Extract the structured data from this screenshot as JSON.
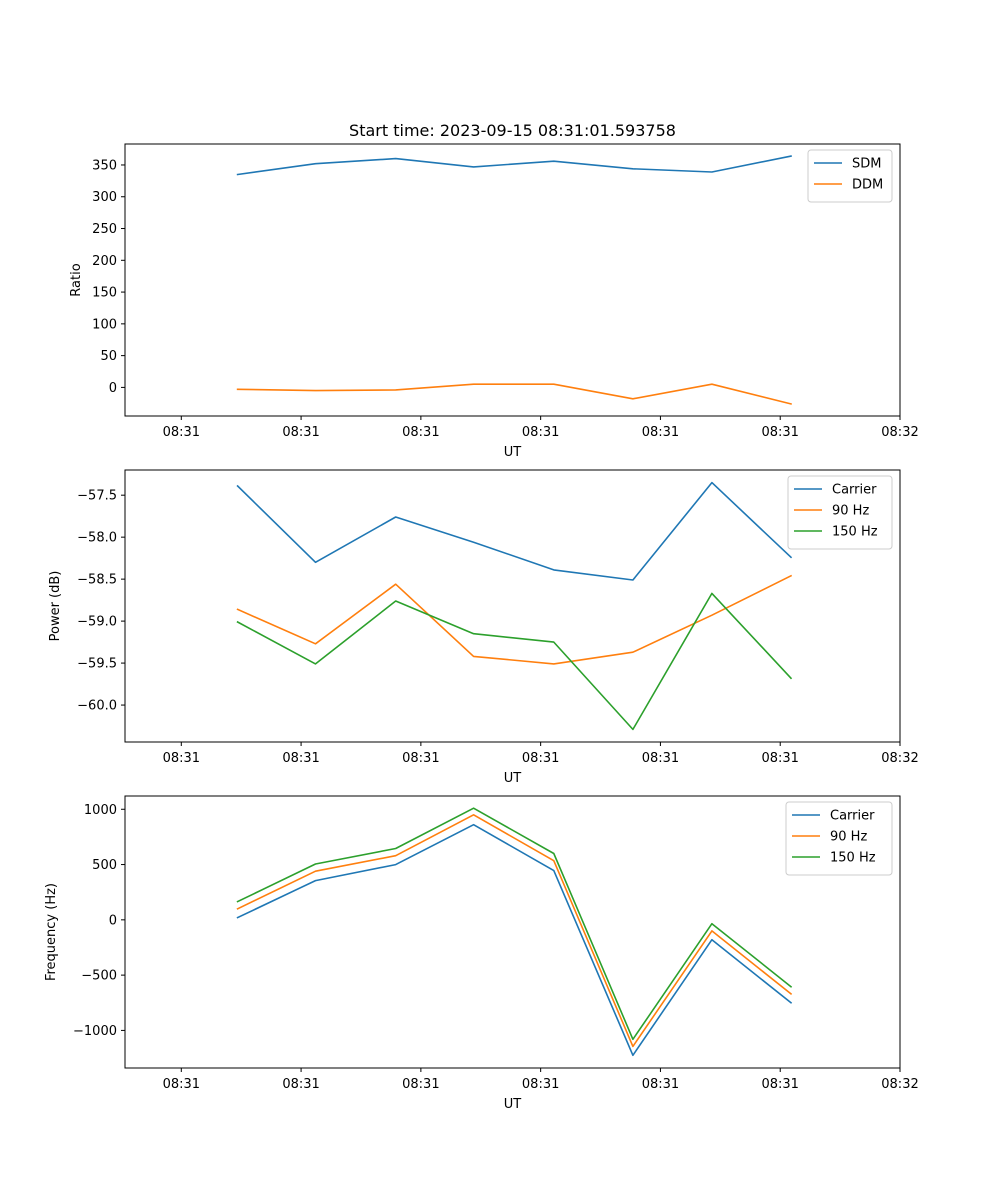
{
  "figure_title": "Start time: 2023-09-15 08:31:01.593758",
  "colors": {
    "blue": "#1f77b4",
    "orange": "#ff7f0e",
    "green": "#2ca02c"
  },
  "chart_data": [
    {
      "type": "line",
      "title": "Start time: 2023-09-15 08:31:01.593758",
      "xlabel": "UT",
      "ylabel": "Ratio",
      "x": [
        0.47,
        1.12,
        1.79,
        2.44,
        3.11,
        3.77,
        4.43,
        5.09
      ],
      "xlim": [
        -0.47,
        6.0
      ],
      "xticks": [
        0,
        1,
        2,
        3,
        4,
        5,
        6
      ],
      "xticklabels": [
        "08:31",
        "08:31",
        "08:31",
        "08:31",
        "08:31",
        "08:31",
        "08:32"
      ],
      "ylim": [
        -45,
        383
      ],
      "yticks": [
        0,
        50,
        100,
        150,
        200,
        250,
        300,
        350
      ],
      "yticklabels": [
        "0",
        "50",
        "100",
        "150",
        "200",
        "250",
        "300",
        "350"
      ],
      "legend_position": "top-right",
      "series": [
        {
          "name": "SDM",
          "color": "#1f77b4",
          "values": [
            335,
            352,
            360,
            347,
            356,
            344,
            339,
            364
          ]
        },
        {
          "name": "DDM",
          "color": "#ff7f0e",
          "values": [
            -3,
            -5,
            -4,
            5,
            5,
            -18,
            5,
            -26
          ]
        }
      ]
    },
    {
      "type": "line",
      "title": "",
      "xlabel": "UT",
      "ylabel": "Power (dB)",
      "x": [
        0.47,
        1.12,
        1.79,
        2.44,
        3.11,
        3.77,
        4.43,
        5.09
      ],
      "xlim": [
        -0.47,
        6.0
      ],
      "xticks": [
        0,
        1,
        2,
        3,
        4,
        5,
        6
      ],
      "xticklabels": [
        "08:31",
        "08:31",
        "08:31",
        "08:31",
        "08:31",
        "08:31",
        "08:32"
      ],
      "ylim": [
        -60.44,
        -57.2
      ],
      "yticks": [
        -57.5,
        -58.0,
        -58.5,
        -59.0,
        -59.5,
        -60.0
      ],
      "yticklabels": [
        "−57.5",
        "−58.0",
        "−58.5",
        "−59.0",
        "−59.5",
        "−60.0"
      ],
      "legend_position": "top-right",
      "series": [
        {
          "name": "Carrier",
          "color": "#1f77b4",
          "values": [
            -57.39,
            -58.3,
            -57.76,
            -58.06,
            -58.39,
            -58.51,
            -57.35,
            -58.24
          ]
        },
        {
          "name": "90 Hz",
          "color": "#ff7f0e",
          "values": [
            -58.86,
            -59.27,
            -58.56,
            -59.42,
            -59.51,
            -59.37,
            -58.93,
            -58.46
          ]
        },
        {
          "name": "150 Hz",
          "color": "#2ca02c",
          "values": [
            -59.01,
            -59.51,
            -58.76,
            -59.15,
            -59.25,
            -60.29,
            -58.67,
            -59.68
          ]
        }
      ]
    },
    {
      "type": "line",
      "title": "",
      "xlabel": "UT",
      "ylabel": "Frequency (Hz)",
      "x": [
        0.47,
        1.12,
        1.79,
        2.44,
        3.11,
        3.77,
        4.43,
        5.09
      ],
      "xlim": [
        -0.47,
        6.0
      ],
      "xticks": [
        0,
        1,
        2,
        3,
        4,
        5,
        6
      ],
      "xticklabels": [
        "08:31",
        "08:31",
        "08:31",
        "08:31",
        "08:31",
        "08:31",
        "08:32"
      ],
      "ylim": [
        -1340,
        1120
      ],
      "yticks": [
        1000,
        500,
        0,
        -500,
        -1000
      ],
      "yticklabels": [
        "1000",
        "500",
        "0",
        "−500",
        "−1000"
      ],
      "legend_position": "top-right",
      "series": [
        {
          "name": "Carrier",
          "color": "#1f77b4",
          "values": [
            20,
            355,
            500,
            860,
            445,
            -1225,
            -180,
            -750
          ]
        },
        {
          "name": "90 Hz",
          "color": "#ff7f0e",
          "values": [
            100,
            440,
            580,
            950,
            535,
            -1145,
            -100,
            -670
          ]
        },
        {
          "name": "150 Hz",
          "color": "#2ca02c",
          "values": [
            165,
            505,
            645,
            1010,
            600,
            -1080,
            -35,
            -605
          ]
        }
      ]
    }
  ]
}
